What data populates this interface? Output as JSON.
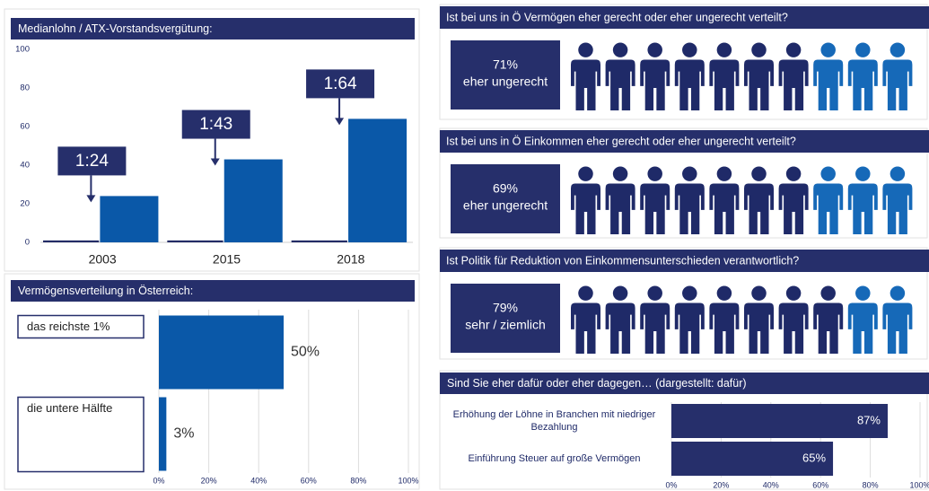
{
  "chart_data": [
    {
      "type": "bar",
      "title": "Medianlohn  / ATX-Vorstandsvergütung:",
      "categories": [
        "2003",
        "2015",
        "2018"
      ],
      "series": [
        {
          "color": "#232c66",
          "values": [
            1,
            1,
            1
          ]
        },
        {
          "color": "#0a58a8",
          "values": [
            24,
            43,
            64
          ],
          "value_labels": [
            "1:24",
            "1:43",
            "1:64"
          ]
        }
      ],
      "ylim": [
        0,
        100
      ],
      "yticks": [
        0,
        20,
        40,
        60,
        80,
        100
      ],
      "grid": false
    },
    {
      "type": "hbar",
      "title": "Vermögensverteilung in Österreich:",
      "categories": [
        "das reichste 1%",
        "die untere Hälfte"
      ],
      "values": [
        50,
        3
      ],
      "value_labels": [
        "50%",
        "3%"
      ],
      "color": "#0a58a8",
      "xlim": [
        0,
        100
      ],
      "xticks": [
        {
          "value": 0,
          "label": "0%"
        },
        {
          "value": 20,
          "label": "20%"
        },
        {
          "value": 40,
          "label": "40%"
        },
        {
          "value": 60,
          "label": "60%"
        },
        {
          "value": 80,
          "label": "80%"
        },
        {
          "value": 100,
          "label": "100%"
        }
      ],
      "grid": true
    },
    {
      "type": "pictogram",
      "title": "Ist bei uns in Ö Vermögen eher gerecht oder eher ungerecht verteilt?",
      "value": 71,
      "value_label": "71%",
      "label": "eher ungerecht",
      "colors": [
        "#1f2a68",
        "#1669b8"
      ]
    },
    {
      "type": "pictogram",
      "title": "Ist bei uns in Ö Einkommen eher gerecht oder eher ungerecht verteilt?",
      "value": 69,
      "value_label": "69%",
      "label": "eher ungerecht",
      "colors": [
        "#1f2a68",
        "#1669b8"
      ]
    },
    {
      "type": "pictogram",
      "title": "Ist Politik für Reduktion von Einkommensunterschieden verantwortlich?",
      "value": 79,
      "value_label": "79%",
      "label": "sehr / ziemlich",
      "colors": [
        "#1f2a68",
        "#1669b8"
      ]
    },
    {
      "type": "hbar",
      "title": "Sind Sie eher dafür oder eher dagegen… (dargestellt: dafür)",
      "categories": [
        "Erhöhung der Löhne in Branchen mit niedriger Bezahlung",
        "Einführung Steuer auf große Vermögen"
      ],
      "values": [
        87,
        65
      ],
      "value_labels": [
        "87%",
        "65%"
      ],
      "color": "#262f6b",
      "xlim": [
        0,
        100
      ],
      "xticks": [
        {
          "value": 0,
          "label": "0%"
        },
        {
          "value": 20,
          "label": "20%"
        },
        {
          "value": 40,
          "label": "40%"
        },
        {
          "value": 60,
          "label": "60%"
        },
        {
          "value": 80,
          "label": "80%"
        },
        {
          "value": 100,
          "label": "100%"
        }
      ],
      "grid": true
    }
  ]
}
